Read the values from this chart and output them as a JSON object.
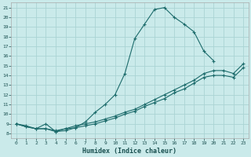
{
  "xlabel": "Humidex (Indice chaleur)",
  "xlim": [
    -0.5,
    23.5
  ],
  "ylim": [
    7.5,
    21.5
  ],
  "xticks": [
    0,
    1,
    2,
    3,
    4,
    5,
    6,
    7,
    8,
    9,
    10,
    11,
    12,
    13,
    14,
    15,
    16,
    17,
    18,
    19,
    20,
    21,
    22,
    23
  ],
  "yticks": [
    8,
    9,
    10,
    11,
    12,
    13,
    14,
    15,
    16,
    17,
    18,
    19,
    20,
    21
  ],
  "bg_color": "#caeaea",
  "line_color": "#1c6b6b",
  "grid_color": "#aad4d4",
  "curve1_x": [
    0,
    1,
    2,
    3,
    4,
    5,
    6,
    7,
    8,
    9,
    10,
    11,
    12,
    13,
    14,
    15,
    16,
    17,
    18,
    19,
    20
  ],
  "curve1_y": [
    9.0,
    8.7,
    8.5,
    9.0,
    8.2,
    8.5,
    8.6,
    9.2,
    10.2,
    11.0,
    12.0,
    14.2,
    17.8,
    19.3,
    20.8,
    21.0,
    20.0,
    19.3,
    18.5,
    16.5,
    15.5
  ],
  "curve2_x": [
    0,
    1,
    2,
    3,
    4,
    5,
    6,
    7,
    8,
    9,
    10,
    11,
    12,
    13,
    14,
    15,
    16,
    17,
    18,
    19,
    20,
    21,
    22,
    23
  ],
  "curve2_y": [
    9.0,
    8.8,
    8.5,
    8.5,
    8.3,
    8.5,
    8.8,
    9.0,
    9.2,
    9.5,
    9.8,
    10.2,
    10.5,
    11.0,
    11.5,
    12.0,
    12.5,
    13.0,
    13.5,
    14.2,
    14.5,
    14.5,
    14.2,
    15.2
  ],
  "curve3_x": [
    0,
    1,
    2,
    3,
    4,
    5,
    6,
    7,
    8,
    9,
    10,
    11,
    12,
    13,
    14,
    15,
    16,
    17,
    18,
    19,
    20,
    21,
    22,
    23
  ],
  "curve3_y": [
    9.0,
    8.7,
    8.5,
    8.5,
    8.2,
    8.3,
    8.6,
    8.8,
    9.0,
    9.3,
    9.6,
    10.0,
    10.3,
    10.8,
    11.2,
    11.6,
    12.2,
    12.6,
    13.2,
    13.8,
    14.0,
    14.0,
    13.8,
    14.8
  ]
}
